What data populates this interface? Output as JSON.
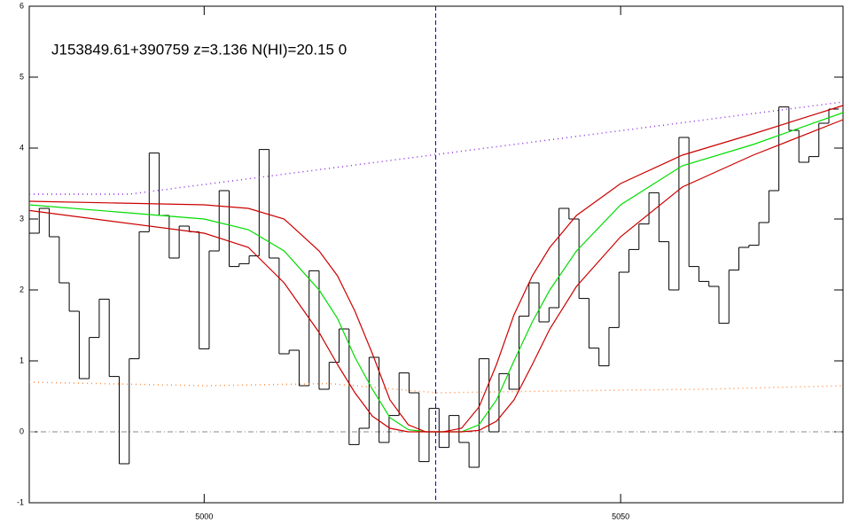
{
  "chart_data": {
    "type": "line",
    "title": "J153849.61+390759 z=3.136 N(HI)=20.15 0",
    "xlim": [
      4979,
      5076.7
    ],
    "ylim": [
      -1,
      6
    ],
    "xticks": [
      5000,
      5050
    ],
    "yticks": [
      -1,
      0,
      1,
      2,
      3,
      4,
      5,
      6
    ],
    "vline": 5027.8,
    "vline_color": "#0000cc",
    "hline": 0,
    "hline_color": "#888888",
    "flux": {
      "color": "#000000",
      "bins": [
        4979.0,
        4980.2,
        4981.4,
        4982.6,
        4983.8,
        4985.0,
        4986.2,
        4987.4,
        4988.6,
        4989.8,
        4991.0,
        4992.2,
        4993.4,
        4994.6,
        4995.8,
        4997.0,
        4998.2,
        4999.4,
        5000.6,
        5001.8,
        5003.0,
        5004.2,
        5005.4,
        5006.6,
        5007.8,
        5009.0,
        5010.2,
        5011.4,
        5012.6,
        5013.8,
        5015.0,
        5016.2,
        5017.4,
        5018.6,
        5019.8,
        5021.0,
        5022.2,
        5023.4,
        5024.6,
        5025.8,
        5027.0,
        5028.2,
        5029.4,
        5030.6,
        5031.8,
        5033.0,
        5034.2,
        5035.4,
        5036.6,
        5037.8,
        5039.0,
        5040.2,
        5041.4,
        5042.6,
        5043.8,
        5045.0,
        5046.2,
        5047.4,
        5048.6,
        5049.8,
        5051.0,
        5052.2,
        5053.4,
        5054.6,
        5055.8,
        5057.0,
        5058.2,
        5059.4,
        5060.6,
        5061.8,
        5063.0,
        5064.2,
        5065.4,
        5066.6,
        5067.8,
        5069.0,
        5070.2,
        5071.4,
        5072.6,
        5073.8,
        5075.0,
        5076.2
      ],
      "values": [
        2.8,
        3.15,
        2.75,
        2.1,
        1.7,
        0.75,
        1.33,
        1.87,
        0.78,
        -0.45,
        1.03,
        2.82,
        3.93,
        3.05,
        2.45,
        2.9,
        2.82,
        1.17,
        2.55,
        3.4,
        2.33,
        2.37,
        2.48,
        3.98,
        2.45,
        1.1,
        1.15,
        0.65,
        2.27,
        0.6,
        0.98,
        1.45,
        -0.18,
        0.05,
        1.05,
        -0.15,
        0.23,
        0.83,
        0.55,
        -0.42,
        0.33,
        -0.22,
        0.23,
        -0.15,
        -0.5,
        1.03,
        0.0,
        0.82,
        0.6,
        1.63,
        2.1,
        1.55,
        1.75,
        3.15,
        3.0,
        1.88,
        1.18,
        0.93,
        1.47,
        2.25,
        2.57,
        2.93,
        3.37,
        2.68,
        2.0,
        4.15,
        2.33,
        2.12,
        2.05,
        1.53,
        2.28,
        2.6,
        2.63,
        2.95,
        3.4,
        4.58,
        4.25,
        3.8,
        3.88,
        4.35,
        4.55
      ]
    },
    "series": [
      {
        "color": "#00dd00",
        "dash": "none",
        "x": [
          4979,
          5000,
          5005.3,
          5009.6,
          5013.8,
          5016,
          5018.1,
          5020.2,
          5022.3,
          5024.5,
          5026.6,
          5028.7,
          5030.9,
          5033,
          5035.1,
          5037.2,
          5039.4,
          5041.5,
          5044.7,
          5050,
          5057.4,
          5065.9,
          5076.7
        ],
        "values": [
          3.2,
          3.0,
          2.85,
          2.55,
          2.0,
          1.6,
          1.05,
          0.6,
          0.2,
          0.03,
          0,
          0,
          0,
          0.1,
          0.45,
          1.0,
          1.55,
          2.0,
          2.55,
          3.2,
          3.75,
          4.05,
          4.5
        ]
      },
      {
        "color": "#cc0000",
        "dash": "none",
        "x": [
          4979,
          5000,
          5005.3,
          5009.6,
          5013.8,
          5016,
          5018.1,
          5020.2,
          5022.3,
          5024.5,
          5026.6,
          5028.7,
          5030.9,
          5033,
          5035.1,
          5037.2,
          5039.4,
          5041.5,
          5044.7,
          5050,
          5057.4,
          5065.9,
          5076.7
        ],
        "values": [
          3.25,
          3.2,
          3.15,
          3.0,
          2.55,
          2.2,
          1.7,
          1.1,
          0.45,
          0.1,
          0,
          0,
          0.05,
          0.35,
          0.95,
          1.65,
          2.2,
          2.6,
          3.05,
          3.5,
          3.9,
          4.2,
          4.6
        ]
      },
      {
        "color": "#cc0000",
        "dash": "none",
        "x": [
          4979,
          5000,
          5005.3,
          5009.6,
          5013.8,
          5016,
          5018.1,
          5020.2,
          5022.3,
          5024.5,
          5026.6,
          5028.7,
          5030.9,
          5033,
          5035.1,
          5037.2,
          5039.4,
          5041.5,
          5044.7,
          5050,
          5057.4,
          5065.9,
          5076.7
        ],
        "values": [
          3.12,
          2.8,
          2.6,
          2.1,
          1.4,
          0.95,
          0.55,
          0.22,
          0.05,
          0,
          0,
          0,
          0,
          0.02,
          0.15,
          0.45,
          0.95,
          1.45,
          2.05,
          2.75,
          3.45,
          3.9,
          4.4
        ]
      },
      {
        "color": "#8a2be2",
        "dash": "1 4",
        "x": [
          4979,
          4991,
          5076.7
        ],
        "values": [
          3.35,
          3.35,
          4.65
        ]
      },
      {
        "color": "#ff8c40",
        "dash": "1 4",
        "x": [
          4979,
          5000,
          5015,
          5028,
          5045,
          5060,
          5076.7
        ],
        "values": [
          0.7,
          0.65,
          0.68,
          0.55,
          0.58,
          0.6,
          0.65
        ]
      }
    ]
  }
}
